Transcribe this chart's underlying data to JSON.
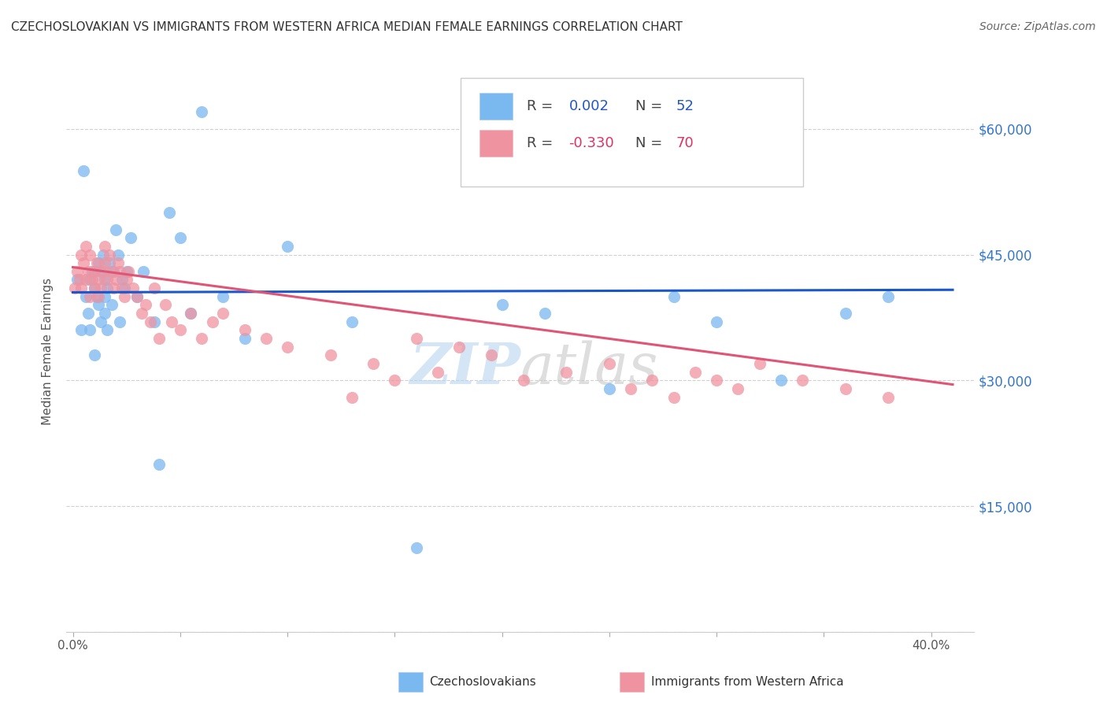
{
  "title": "CZECHOSLOVAKIAN VS IMMIGRANTS FROM WESTERN AFRICA MEDIAN FEMALE EARNINGS CORRELATION CHART",
  "source": "Source: ZipAtlas.com",
  "ylabel": "Median Female Earnings",
  "watermark": "ZIPatlas",
  "blue_color": "#7ab8f0",
  "pink_color": "#f093a0",
  "trend_blue_color": "#1a56cc",
  "trend_pink_color": "#e05575",
  "yticks": [
    0,
    15000,
    30000,
    45000,
    60000
  ],
  "ytick_labels": [
    "",
    "$15,000",
    "$30,000",
    "$45,000",
    "$60,000"
  ],
  "xlim": [
    -0.003,
    0.42
  ],
  "ylim": [
    0,
    67000
  ],
  "xticks": [
    0.0,
    0.05,
    0.1,
    0.15,
    0.2,
    0.25,
    0.3,
    0.35,
    0.4
  ],
  "xtick_labels": [
    "0.0%",
    "",
    "",
    "",
    "",
    "",
    "",
    "",
    "40.0%"
  ],
  "blue_x": [
    0.002,
    0.004,
    0.005,
    0.006,
    0.007,
    0.008,
    0.008,
    0.009,
    0.01,
    0.01,
    0.011,
    0.012,
    0.012,
    0.013,
    0.013,
    0.014,
    0.015,
    0.015,
    0.015,
    0.016,
    0.016,
    0.017,
    0.018,
    0.019,
    0.02,
    0.021,
    0.022,
    0.023,
    0.024,
    0.025,
    0.027,
    0.03,
    0.033,
    0.038,
    0.04,
    0.045,
    0.05,
    0.055,
    0.06,
    0.07,
    0.08,
    0.1,
    0.13,
    0.16,
    0.2,
    0.22,
    0.25,
    0.28,
    0.3,
    0.33,
    0.36,
    0.38
  ],
  "blue_y": [
    42000,
    36000,
    55000,
    40000,
    38000,
    36000,
    42000,
    43000,
    41000,
    33000,
    40000,
    39000,
    44000,
    37000,
    43000,
    45000,
    38000,
    40000,
    42000,
    36000,
    41000,
    44000,
    39000,
    43000,
    48000,
    45000,
    37000,
    42000,
    41000,
    43000,
    47000,
    40000,
    43000,
    37000,
    20000,
    50000,
    47000,
    38000,
    62000,
    40000,
    35000,
    46000,
    37000,
    10000,
    39000,
    38000,
    29000,
    40000,
    37000,
    30000,
    38000,
    40000
  ],
  "pink_x": [
    0.001,
    0.002,
    0.003,
    0.004,
    0.004,
    0.005,
    0.006,
    0.006,
    0.007,
    0.008,
    0.008,
    0.009,
    0.01,
    0.01,
    0.011,
    0.012,
    0.012,
    0.013,
    0.014,
    0.015,
    0.015,
    0.016,
    0.017,
    0.018,
    0.019,
    0.02,
    0.021,
    0.022,
    0.023,
    0.024,
    0.025,
    0.026,
    0.028,
    0.03,
    0.032,
    0.034,
    0.036,
    0.038,
    0.04,
    0.043,
    0.046,
    0.05,
    0.055,
    0.06,
    0.065,
    0.07,
    0.08,
    0.09,
    0.1,
    0.12,
    0.13,
    0.14,
    0.15,
    0.16,
    0.17,
    0.18,
    0.195,
    0.21,
    0.23,
    0.25,
    0.26,
    0.27,
    0.28,
    0.29,
    0.3,
    0.31,
    0.32,
    0.34,
    0.36,
    0.38
  ],
  "pink_y": [
    41000,
    43000,
    42000,
    45000,
    41000,
    44000,
    42000,
    46000,
    43000,
    40000,
    45000,
    42000,
    41000,
    43000,
    44000,
    42000,
    40000,
    41000,
    43000,
    46000,
    44000,
    42000,
    45000,
    43000,
    41000,
    42000,
    44000,
    43000,
    41000,
    40000,
    42000,
    43000,
    41000,
    40000,
    38000,
    39000,
    37000,
    41000,
    35000,
    39000,
    37000,
    36000,
    38000,
    35000,
    37000,
    38000,
    36000,
    35000,
    34000,
    33000,
    28000,
    32000,
    30000,
    35000,
    31000,
    34000,
    33000,
    30000,
    31000,
    32000,
    29000,
    30000,
    28000,
    31000,
    30000,
    29000,
    32000,
    30000,
    29000,
    28000
  ],
  "blue_trend_x": [
    0.0,
    0.41
  ],
  "blue_trend_y": [
    40500,
    40800
  ],
  "pink_trend_x": [
    0.0,
    0.41
  ],
  "pink_trend_y": [
    43500,
    29500
  ],
  "grid_color": "#d0d0d0",
  "background_color": "#ffffff",
  "title_color": "#333333",
  "axis_label_color": "#555555",
  "ytick_color": "#3377cc",
  "xtick_color": "#555555",
  "title_fontsize": 11,
  "source_fontsize": 10,
  "legend_fontsize": 13,
  "watermark_fontsize": 52,
  "legend_R_color_blue": "#2255cc",
  "legend_R_color_pink": "#dd3366"
}
